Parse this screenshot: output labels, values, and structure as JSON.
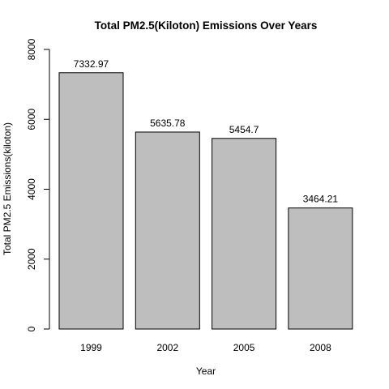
{
  "chart_data": {
    "type": "bar",
    "title": "Total PM2.5(Kiloton) Emissions Over Years",
    "xlabel": "Year",
    "ylabel": "Total PM2.5 Emissions(kiloton)",
    "categories": [
      "1999",
      "2002",
      "2005",
      "2008"
    ],
    "values": [
      7332.97,
      5635.78,
      5454.7,
      3464.21
    ],
    "data_labels": [
      "7332.97",
      "5635.78",
      "5454.7",
      "3464.21"
    ],
    "ylim": [
      0,
      8000
    ],
    "yticks": [
      0,
      2000,
      4000,
      6000,
      8000
    ],
    "grid": false,
    "legend": "none",
    "bar_color": "#bebebe",
    "bar_border": "#000000"
  }
}
